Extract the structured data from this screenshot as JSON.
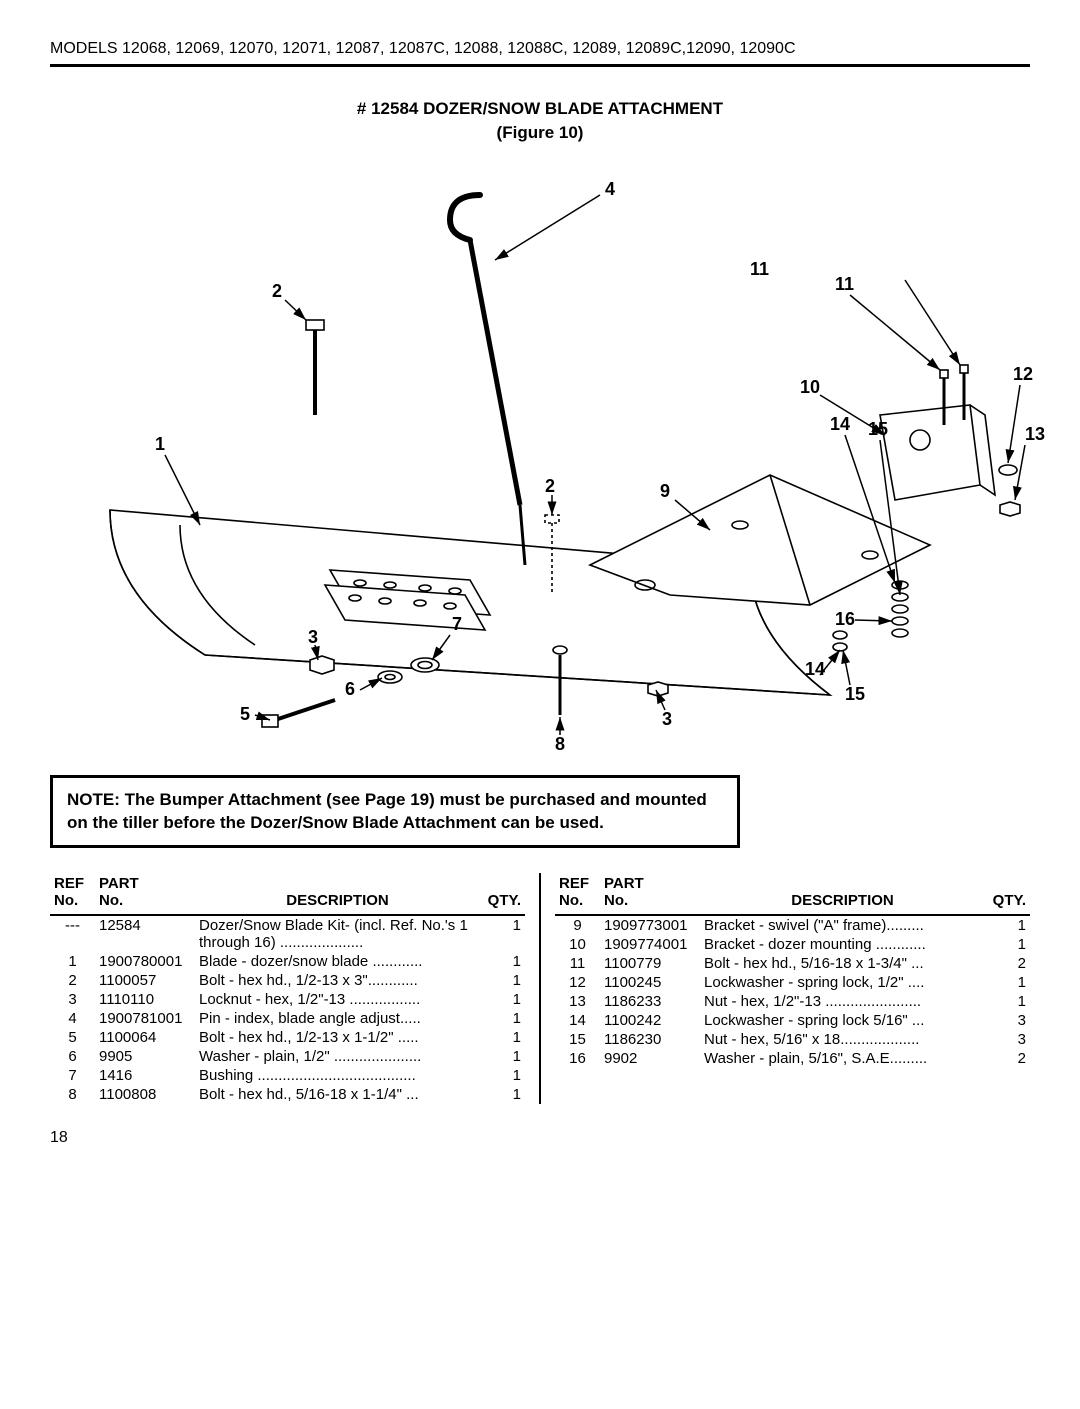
{
  "header": {
    "models_line": "MODELS 12068, 12069, 12070, 12071, 12087, 12087C, 12088, 12088C, 12089, 12089C,12090, 12090C"
  },
  "title": {
    "line1": "# 12584 DOZER/SNOW BLADE ATTACHMENT",
    "line2": "(Figure 10)"
  },
  "diagram": {
    "callouts": [
      "1",
      "2",
      "3",
      "4",
      "5",
      "6",
      "7",
      "8",
      "9",
      "10",
      "11",
      "12",
      "13",
      "14",
      "15",
      "16",
      "2",
      "3",
      "11",
      "14",
      "15"
    ],
    "stroke": "#000000",
    "fill": "#ffffff"
  },
  "note": {
    "text": "NOTE:  The Bumper Attachment (see Page 19) must be purchased and mounted on the tiller before the Dozer/Snow Blade Attachment can be used."
  },
  "table_headers": {
    "ref": "REF",
    "no": "No.",
    "part": "PART",
    "desc": "DESCRIPTION",
    "qty": "QTY."
  },
  "parts_left": [
    {
      "ref": "---",
      "part": "12584",
      "desc": "Dozer/Snow Blade Kit- (incl. Ref. No.'s 1 through 16) ....................",
      "qty": "1"
    },
    {
      "ref": "1",
      "part": "1900780001",
      "desc": "Blade - dozer/snow blade ............",
      "qty": "1"
    },
    {
      "ref": "2",
      "part": "1100057",
      "desc": "Bolt - hex hd., 1/2-13 x 3\"............",
      "qty": "1"
    },
    {
      "ref": "3",
      "part": "1110110",
      "desc": "Locknut - hex, 1/2\"-13 .................",
      "qty": "1"
    },
    {
      "ref": "4",
      "part": "1900781001",
      "desc": "Pin - index, blade angle adjust.....",
      "qty": "1"
    },
    {
      "ref": "5",
      "part": "1100064",
      "desc": "Bolt - hex hd., 1/2-13 x 1-1/2\" .....",
      "qty": "1"
    },
    {
      "ref": "6",
      "part": "9905",
      "desc": "Washer - plain, 1/2\" .....................",
      "qty": "1"
    },
    {
      "ref": "7",
      "part": "1416",
      "desc": "Bushing ......................................",
      "qty": "1"
    },
    {
      "ref": "8",
      "part": "1100808",
      "desc": "Bolt - hex hd., 5/16-18 x 1-1/4\" ...",
      "qty": "1"
    }
  ],
  "parts_right": [
    {
      "ref": "9",
      "part": "1909773001",
      "desc": "Bracket - swivel (\"A\" frame).........",
      "qty": "1"
    },
    {
      "ref": "10",
      "part": "1909774001",
      "desc": "Bracket - dozer mounting ............",
      "qty": "1"
    },
    {
      "ref": "11",
      "part": "1100779",
      "desc": "Bolt - hex hd., 5/16-18 x 1-3/4\" ...",
      "qty": "2"
    },
    {
      "ref": "12",
      "part": "1100245",
      "desc": "Lockwasher - spring lock, 1/2\" ....",
      "qty": "1"
    },
    {
      "ref": "13",
      "part": "1186233",
      "desc": "Nut - hex, 1/2\"-13 .......................",
      "qty": "1"
    },
    {
      "ref": "14",
      "part": "1100242",
      "desc": "Lockwasher - spring lock 5/16\" ...",
      "qty": "3"
    },
    {
      "ref": "15",
      "part": "1186230",
      "desc": "Nut - hex, 5/16\" x 18...................",
      "qty": "3"
    },
    {
      "ref": "16",
      "part": "9902",
      "desc": "Washer - plain, 5/16\", S.A.E.........",
      "qty": "2"
    }
  ],
  "page_number": "18"
}
